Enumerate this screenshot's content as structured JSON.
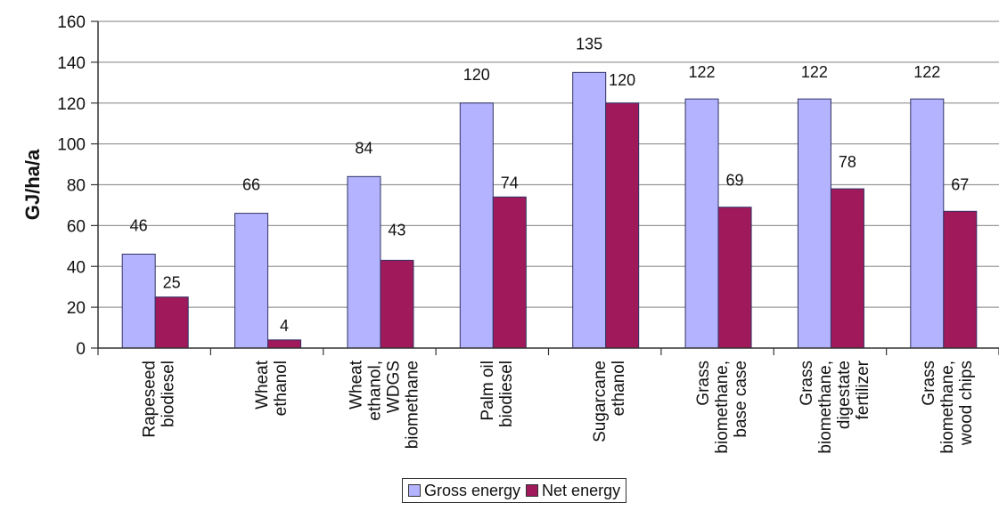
{
  "colors": {
    "gross": "#b3b3ff",
    "net": "#a0195a",
    "grid": "#9a9a9a",
    "axis": "#333333",
    "bar_outline": "#333366"
  },
  "chart_data": {
    "type": "bar",
    "title": "",
    "xlabel": "",
    "ylabel": "GJ/ha/a",
    "ylim": [
      0,
      160
    ],
    "yticks": [
      0,
      20,
      40,
      60,
      80,
      100,
      120,
      140,
      160
    ],
    "grid": true,
    "legend_position": "bottom",
    "categories": [
      [
        "Rapeseed",
        "biodiesel"
      ],
      [
        "Wheat",
        "ethanol"
      ],
      [
        "Wheat",
        "ethanol,",
        "WDGS",
        "biomethane"
      ],
      [
        "Palm oil",
        "biodiesel"
      ],
      [
        "Sugarcane",
        "ethanol"
      ],
      [
        "Grass",
        "biomethane,",
        "base case"
      ],
      [
        "Grass",
        "biomethane,",
        "digestate",
        "fertilizer"
      ],
      [
        "Grass",
        "biomethane,",
        "wood chips"
      ]
    ],
    "series": [
      {
        "name": "Gross energy",
        "values": [
          46,
          66,
          84,
          120,
          135,
          122,
          122,
          122
        ]
      },
      {
        "name": "Net energy",
        "values": [
          25,
          4,
          43,
          74,
          120,
          69,
          78,
          67
        ]
      }
    ],
    "data_labels": [
      [
        "46",
        "66",
        "84",
        "120",
        "135",
        "122",
        "122",
        "122"
      ],
      [
        "25",
        "4",
        "43",
        "74",
        "120",
        "69",
        "78",
        "67"
      ]
    ]
  }
}
